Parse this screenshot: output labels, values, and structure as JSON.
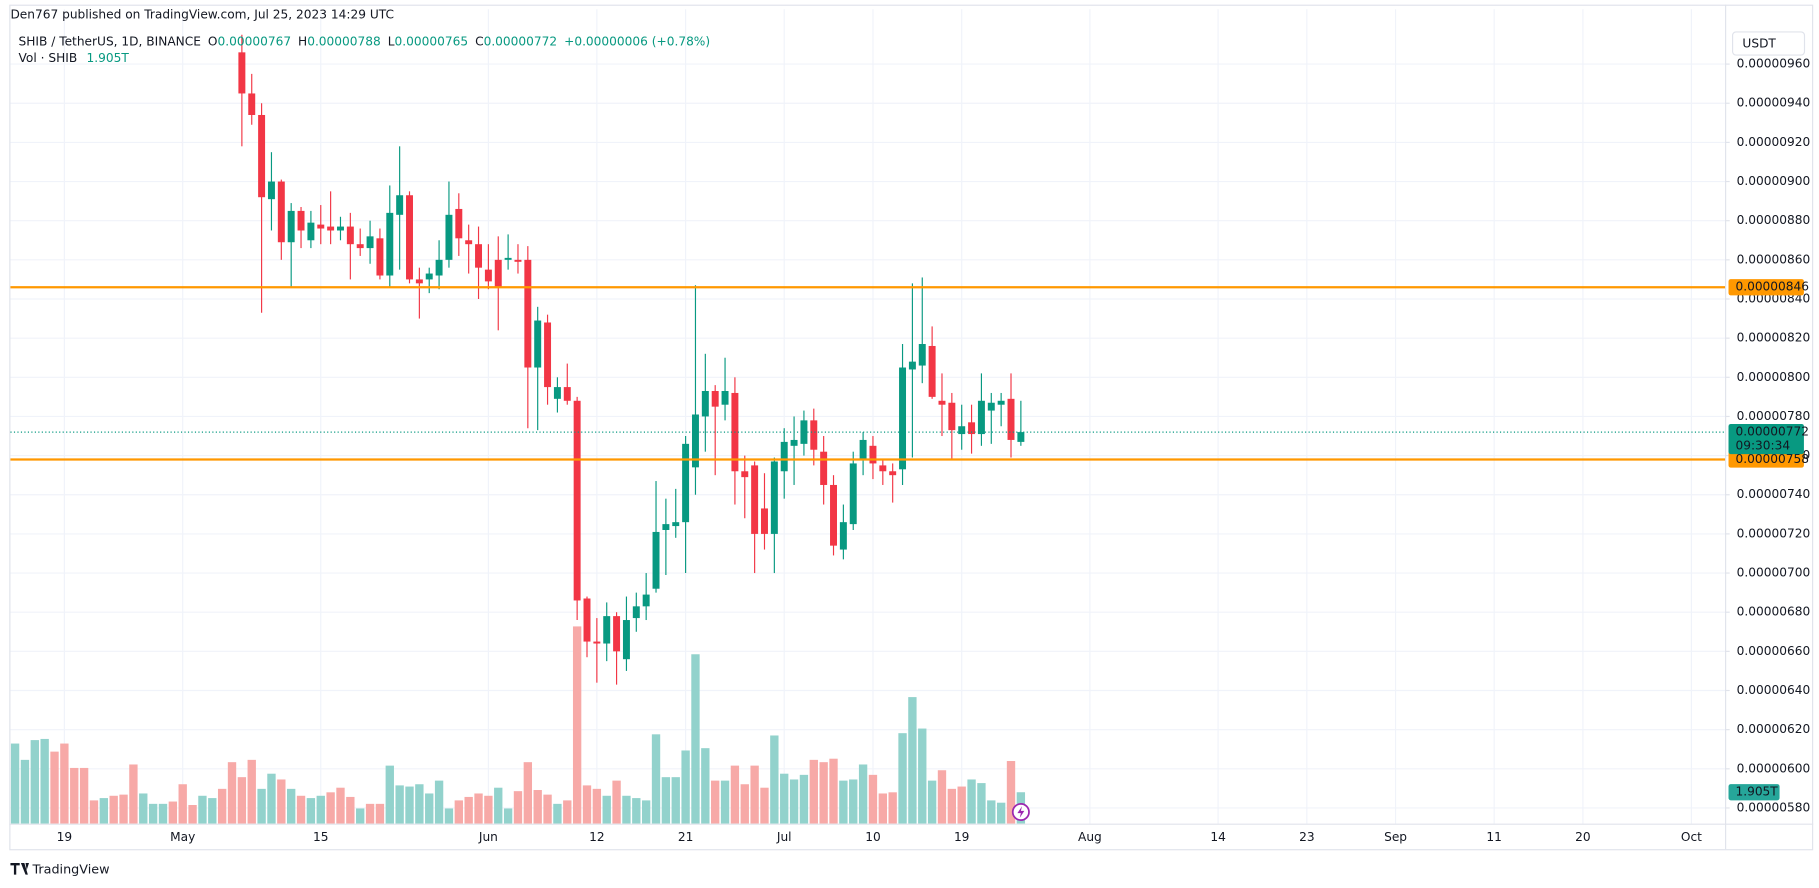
{
  "header": {
    "publisher": "Den767 published on TradingView.com, Jul 25, 2023 14:29 UTC",
    "currency_button": "USDT",
    "brand": "TradingView"
  },
  "legend": {
    "symbol": "SHIB / TetherUS, 1D, BINANCE",
    "open_label": "O",
    "open": "0.00000767",
    "high_label": "H",
    "high": "0.00000788",
    "low_label": "L",
    "low": "0.00000765",
    "close_label": "C",
    "close": "0.00000772",
    "change": "+0.00000006 (+0.78%)",
    "volume_name": "Vol · SHIB",
    "volume": "1.905T"
  },
  "chart_data": {
    "type": "candlestick",
    "up_color": "#089981",
    "down_color": "#f23645",
    "grid": true,
    "ylim": [
      5.72e-06,
      9.88e-06
    ],
    "yticks": [
      {
        "value": 5.8e-06,
        "label": "0.00000580"
      },
      {
        "value": 6e-06,
        "label": "0.00000600"
      },
      {
        "value": 6.2e-06,
        "label": "0.00000620"
      },
      {
        "value": 6.4e-06,
        "label": "0.00000640"
      },
      {
        "value": 6.6e-06,
        "label": "0.00000660"
      },
      {
        "value": 6.8e-06,
        "label": "0.00000680"
      },
      {
        "value": 7e-06,
        "label": "0.00000700"
      },
      {
        "value": 7.2e-06,
        "label": "0.00000720"
      },
      {
        "value": 7.4e-06,
        "label": "0.00000740"
      },
      {
        "value": 7.6e-06,
        "label": "0.00000760"
      },
      {
        "value": 7.8e-06,
        "label": "0.00000780"
      },
      {
        "value": 8e-06,
        "label": "0.00000800"
      },
      {
        "value": 8.2e-06,
        "label": "0.00000820"
      },
      {
        "value": 8.4e-06,
        "label": "0.00000840"
      },
      {
        "value": 8.6e-06,
        "label": "0.00000860"
      },
      {
        "value": 8.8e-06,
        "label": "0.00000880"
      },
      {
        "value": 9e-06,
        "label": "0.00000900"
      },
      {
        "value": 9.2e-06,
        "label": "0.00000920"
      },
      {
        "value": 9.4e-06,
        "label": "0.00000940"
      },
      {
        "value": 9.6e-06,
        "label": "0.00000960"
      }
    ],
    "categories": [
      null,
      null,
      null,
      null,
      null,
      "19",
      null,
      null,
      null,
      null,
      null,
      null,
      null,
      null,
      null,
      null,
      null,
      "May",
      null,
      null,
      null,
      null,
      null,
      null,
      null,
      null,
      null,
      null,
      null,
      null,
      null,
      "15",
      null,
      null,
      null,
      null,
      null,
      null,
      null,
      null,
      null,
      null,
      null,
      null,
      null,
      null,
      null,
      null,
      "Jun",
      null,
      null,
      null,
      null,
      null,
      null,
      null,
      null,
      null,
      null,
      "12",
      null,
      null,
      null,
      null,
      null,
      null,
      null,
      null,
      "21",
      null,
      null,
      null,
      null,
      null,
      null,
      null,
      null,
      null,
      "Jul",
      null,
      null,
      null,
      null,
      null,
      null,
      null,
      null,
      "10",
      null,
      null,
      null,
      null,
      null,
      null,
      null,
      null,
      "19",
      null,
      null,
      null,
      null,
      null,
      null,
      null,
      null,
      null,
      null,
      null,
      null,
      "Aug",
      null,
      null,
      null,
      null,
      null,
      null,
      null,
      null,
      null,
      null,
      null,
      null,
      "14",
      null,
      null,
      null,
      null,
      null,
      null,
      null,
      null,
      "23",
      null,
      null,
      null,
      null,
      null,
      null,
      null,
      null,
      "Sep",
      null,
      null,
      null,
      null,
      null,
      null,
      null,
      null,
      null,
      "11",
      null,
      null,
      null,
      null,
      null,
      null,
      null,
      null,
      "20",
      null,
      null,
      null,
      null,
      null,
      null,
      null,
      null,
      null,
      null,
      "Oct",
      null,
      null,
      null
    ],
    "open": [
      null,
      null,
      null,
      null,
      null,
      null,
      null,
      null,
      null,
      null,
      null,
      null,
      null,
      null,
      null,
      null,
      null,
      null,
      null,
      null,
      null,
      null,
      null,
      9.66e-06,
      9.45e-06,
      9.34e-06,
      8.91e-06,
      9e-06,
      8.69e-06,
      8.85e-06,
      8.7e-06,
      8.78e-06,
      8.77e-06,
      8.75e-06,
      8.77e-06,
      8.68e-06,
      8.66e-06,
      8.71e-06,
      8.52e-06,
      8.83e-06,
      8.93e-06,
      8.5e-06,
      8.5e-06,
      8.52e-06,
      8.6e-06,
      8.86e-06,
      8.7e-06,
      8.68e-06,
      8.55e-06,
      8.6e-06,
      8.6e-06,
      8.6e-06,
      8.6e-06,
      8.05e-06,
      8.28e-06,
      7.89e-06,
      7.95e-06,
      7.88e-06,
      6.87e-06,
      6.65e-06,
      6.64e-06,
      6.78e-06,
      6.56e-06,
      6.77e-06,
      6.83e-06,
      6.92e-06,
      7.22e-06,
      7.24e-06,
      7.26e-06,
      7.54e-06,
      7.8e-06,
      7.93e-06,
      7.86e-06,
      7.92e-06,
      7.52e-06,
      7.55e-06,
      7.33e-06,
      7.2e-06,
      7.52e-06,
      7.65e-06,
      7.66e-06,
      7.78e-06,
      7.62e-06,
      7.45e-06,
      7.12e-06,
      7.25e-06,
      7.58e-06,
      7.65e-06,
      7.55e-06,
      7.52e-06,
      7.53e-06,
      8.04e-06,
      8.06e-06,
      8.16e-06,
      7.88e-06,
      7.87e-06,
      7.71e-06,
      7.77e-06,
      7.71e-06,
      7.83e-06,
      7.86e-06,
      7.89e-06,
      7.67e-06,
      null,
      null,
      null,
      null,
      null,
      null,
      null,
      null,
      null,
      null,
      null,
      null,
      null,
      null,
      null,
      null,
      null,
      null,
      null,
      null,
      null,
      null,
      null,
      null,
      null,
      null,
      null,
      null,
      null,
      null,
      null,
      null,
      null,
      null,
      null,
      null,
      null,
      null,
      null,
      null,
      null,
      null,
      null,
      null,
      null,
      null,
      null,
      null,
      null,
      null,
      null,
      null,
      null,
      null,
      null,
      null,
      null,
      null,
      null,
      null,
      null,
      null,
      null,
      null,
      null,
      null,
      null,
      null,
      null,
      null,
      null
    ],
    "high": [
      null,
      null,
      null,
      null,
      null,
      null,
      null,
      null,
      null,
      null,
      null,
      null,
      null,
      null,
      null,
      null,
      null,
      null,
      null,
      null,
      null,
      null,
      null,
      9.75e-06,
      9.55e-06,
      9.4e-06,
      9.15e-06,
      9.01e-06,
      8.89e-06,
      8.87e-06,
      8.85e-06,
      8.88e-06,
      8.95e-06,
      8.82e-06,
      8.84e-06,
      8.76e-06,
      8.8e-06,
      8.76e-06,
      8.98e-06,
      9.18e-06,
      8.95e-06,
      8.56e-06,
      8.56e-06,
      8.7e-06,
      9e-06,
      8.94e-06,
      8.78e-06,
      8.77e-06,
      8.68e-06,
      8.72e-06,
      8.73e-06,
      8.68e-06,
      8.67e-06,
      8.36e-06,
      8.32e-06,
      8e-06,
      8.07e-06,
      7.9e-06,
      6.88e-06,
      6.77e-06,
      6.85e-06,
      6.8e-06,
      6.88e-06,
      6.9e-06,
      7e-06,
      7.47e-06,
      7.38e-06,
      7.43e-06,
      7.7e-06,
      8.47e-06,
      8.12e-06,
      7.96e-06,
      8.1e-06,
      8e-06,
      7.6e-06,
      7.57e-06,
      7.51e-06,
      7.59e-06,
      7.74e-06,
      7.8e-06,
      7.83e-06,
      7.84e-06,
      7.7e-06,
      7.5e-06,
      7.35e-06,
      7.62e-06,
      7.72e-06,
      7.7e-06,
      7.58e-06,
      7.56e-06,
      8.17e-06,
      8.48e-06,
      8.51e-06,
      8.26e-06,
      8.02e-06,
      7.92e-06,
      7.86e-06,
      7.86e-06,
      8.02e-06,
      7.92e-06,
      7.92e-06,
      8.02e-06,
      7.88e-06,
      null,
      null,
      null,
      null,
      null,
      null,
      null,
      null,
      null,
      null,
      null,
      null,
      null,
      null,
      null,
      null,
      null,
      null,
      null,
      null,
      null,
      null,
      null,
      null,
      null,
      null,
      null,
      null,
      null,
      null,
      null,
      null,
      null,
      null,
      null,
      null,
      null,
      null,
      null,
      null,
      null,
      null,
      null,
      null,
      null,
      null,
      null,
      null,
      null,
      null,
      null,
      null,
      null,
      null,
      null,
      null,
      null,
      null,
      null,
      null,
      null,
      null,
      null,
      null,
      null,
      null,
      null,
      null,
      null,
      null,
      null
    ],
    "low": [
      null,
      null,
      null,
      null,
      null,
      null,
      null,
      null,
      null,
      null,
      null,
      null,
      null,
      null,
      null,
      null,
      null,
      null,
      null,
      null,
      null,
      null,
      null,
      9.18e-06,
      9.29e-06,
      8.33e-06,
      8.75e-06,
      8.6e-06,
      8.46e-06,
      8.66e-06,
      8.66e-06,
      8.68e-06,
      8.68e-06,
      8.7e-06,
      8.5e-06,
      8.62e-06,
      8.58e-06,
      8.5e-06,
      8.46e-06,
      8.55e-06,
      8.48e-06,
      8.3e-06,
      8.43e-06,
      8.45e-06,
      8.56e-06,
      8.62e-06,
      8.53e-06,
      8.4e-06,
      8.45e-06,
      8.24e-06,
      8.55e-06,
      8.53e-06,
      7.74e-06,
      7.73e-06,
      7.86e-06,
      7.82e-06,
      7.86e-06,
      6.76e-06,
      6.57e-06,
      6.44e-06,
      6.55e-06,
      6.43e-06,
      6.5e-06,
      6.7e-06,
      6.76e-06,
      6.9e-06,
      6.99e-06,
      7.18e-06,
      7e-06,
      7.4e-06,
      7.62e-06,
      7.5e-06,
      7.78e-06,
      7.35e-06,
      7.28e-06,
      7e-06,
      7.12e-06,
      7e-06,
      7.38e-06,
      7.45e-06,
      7.6e-06,
      7.55e-06,
      7.35e-06,
      7.09e-06,
      7.07e-06,
      7.22e-06,
      7.5e-06,
      7.48e-06,
      7.45e-06,
      7.36e-06,
      7.45e-06,
      7.59e-06,
      7.97e-06,
      7.89e-06,
      7.7e-06,
      7.58e-06,
      7.63e-06,
      7.61e-06,
      7.65e-06,
      7.66e-06,
      7.75e-06,
      7.59e-06,
      7.65e-06,
      null,
      null,
      null,
      null,
      null,
      null,
      null,
      null,
      null,
      null,
      null,
      null,
      null,
      null,
      null,
      null,
      null,
      null,
      null,
      null,
      null,
      null,
      null,
      null,
      null,
      null,
      null,
      null,
      null,
      null,
      null,
      null,
      null,
      null,
      null,
      null,
      null,
      null,
      null,
      null,
      null,
      null,
      null,
      null,
      null,
      null,
      null,
      null,
      null,
      null,
      null,
      null,
      null,
      null,
      null,
      null,
      null,
      null,
      null,
      null,
      null,
      null,
      null,
      null,
      null,
      null,
      null,
      null,
      null,
      null,
      null
    ],
    "close": [
      null,
      null,
      null,
      null,
      null,
      null,
      null,
      null,
      null,
      null,
      null,
      null,
      null,
      null,
      null,
      null,
      null,
      null,
      null,
      null,
      null,
      null,
      null,
      9.45e-06,
      9.34e-06,
      8.92e-06,
      9e-06,
      8.69e-06,
      8.85e-06,
      8.75e-06,
      8.79e-06,
      8.76e-06,
      8.75e-06,
      8.77e-06,
      8.68e-06,
      8.66e-06,
      8.72e-06,
      8.52e-06,
      8.84e-06,
      8.93e-06,
      8.5e-06,
      8.48e-06,
      8.53e-06,
      8.6e-06,
      8.83e-06,
      8.71e-06,
      8.68e-06,
      8.56e-06,
      8.49e-06,
      8.46e-06,
      8.61e-06,
      8.59e-06,
      8.05e-06,
      8.29e-06,
      7.95e-06,
      7.95e-06,
      7.88e-06,
      6.86e-06,
      6.65e-06,
      6.64e-06,
      6.78e-06,
      6.6e-06,
      6.76e-06,
      6.83e-06,
      6.89e-06,
      7.21e-06,
      7.25e-06,
      7.26e-06,
      7.66e-06,
      7.81e-06,
      7.93e-06,
      7.85e-06,
      7.93e-06,
      7.52e-06,
      7.49e-06,
      7.2e-06,
      7.2e-06,
      7.57e-06,
      7.67e-06,
      7.68e-06,
      7.78e-06,
      7.63e-06,
      7.45e-06,
      7.14e-06,
      7.26e-06,
      7.56e-06,
      7.68e-06,
      7.56e-06,
      7.52e-06,
      7.5e-06,
      8.05e-06,
      8.08e-06,
      8.17e-06,
      7.9e-06,
      7.86e-06,
      7.73e-06,
      7.75e-06,
      7.71e-06,
      7.88e-06,
      7.87e-06,
      7.88e-06,
      7.68e-06,
      7.72e-06,
      null,
      null,
      null,
      null,
      null,
      null,
      null,
      null,
      null,
      null,
      null,
      null,
      null,
      null,
      null,
      null,
      null,
      null,
      null,
      null,
      null,
      null,
      null,
      null,
      null,
      null,
      null,
      null,
      null,
      null,
      null,
      null,
      null,
      null,
      null,
      null,
      null,
      null,
      null,
      null,
      null,
      null,
      null,
      null,
      null,
      null,
      null,
      null,
      null,
      null,
      null,
      null,
      null,
      null,
      null,
      null,
      null,
      null,
      null,
      null,
      null,
      null,
      null,
      null,
      null,
      null,
      null,
      null,
      null,
      null,
      null
    ],
    "volume": {
      "name": "Vol · SHIB",
      "label": "1.905T",
      "label_color": "#26a69a",
      "values": [
        4.86,
        3.87,
        5.07,
        5.14,
        4.37,
        4.86,
        3.38,
        3.38,
        1.41,
        1.55,
        1.69,
        1.76,
        3.59,
        1.83,
        1.2,
        1.2,
        1.34,
        2.39,
        1.13,
        1.69,
        1.55,
        2.11,
        3.73,
        2.82,
        3.87,
        2.11,
        3.03,
        2.68,
        2.11,
        1.69,
        1.55,
        1.69,
        1.9,
        2.18,
        1.62,
        0.92,
        1.2,
        1.2,
        3.52,
        2.32,
        2.25,
        2.39,
        1.83,
        2.61,
        0.92,
        1.41,
        1.62,
        1.83,
        1.69,
        2.18,
        0.92,
        1.97,
        3.73,
        2.04,
        1.76,
        1.2,
        1.41,
        11.97,
        2.32,
        2.11,
        1.69,
        2.61,
        1.69,
        1.55,
        1.41,
        5.42,
        2.82,
        2.82,
        4.44,
        10.28,
        4.58,
        2.61,
        2.61,
        3.52,
        2.39,
        3.52,
        2.18,
        5.35,
        3.03,
        2.68,
        2.96,
        3.87,
        3.73,
        3.94,
        2.61,
        2.68,
        3.59,
        2.96,
        1.83,
        1.9,
        5.49,
        7.68,
        5.77,
        2.61,
        3.24,
        2.11,
        2.25,
        2.68,
        2.46,
        1.41,
        1.27,
        3.8,
        1.905,
        null,
        null,
        null,
        null,
        null,
        null,
        null,
        null,
        null,
        null,
        null,
        null,
        null,
        null,
        null,
        null,
        null,
        null,
        null,
        null,
        null,
        null,
        null,
        null,
        null,
        null,
        null,
        null,
        null,
        null,
        null,
        null,
        null,
        null,
        null,
        null,
        null,
        null,
        null,
        null,
        null,
        null,
        null,
        null,
        null,
        null,
        null,
        null,
        null,
        null,
        null,
        null,
        null,
        null,
        null,
        null,
        null,
        null,
        null,
        null,
        null,
        null,
        null,
        null,
        null,
        null,
        null,
        null,
        null,
        null,
        null
      ],
      "colors": [
        "#92d2cc",
        "#92d2cc",
        "#92d2cc",
        "#92d2cc",
        "#f7a9a7",
        "#f7a9a7",
        "#f7a9a7",
        "#f7a9a7",
        "#f7a9a7",
        "#92d2cc",
        "#f7a9a7",
        "#f7a9a7",
        "#f7a9a7",
        "#92d2cc",
        "#92d2cc",
        "#92d2cc",
        "#f7a9a7",
        "#f7a9a7",
        "#f7a9a7",
        "#92d2cc",
        "#92d2cc",
        "#f7a9a7",
        "#f7a9a7",
        "#f7a9a7",
        "#f7a9a7",
        "#92d2cc",
        "#92d2cc",
        "#f7a9a7",
        "#92d2cc",
        "#f7a9a7",
        "#92d2cc",
        "#92d2cc",
        "#f7a9a7",
        "#f7a9a7",
        "#f7a9a7",
        "#92d2cc",
        "#f7a9a7",
        "#f7a9a7",
        "#92d2cc",
        "#92d2cc",
        "#92d2cc",
        "#92d2cc",
        "#92d2cc",
        "#92d2cc",
        "#92d2cc",
        "#f7a9a7",
        "#f7a9a7",
        "#f7a9a7",
        "#f7a9a7",
        "#92d2cc",
        "#92d2cc",
        "#f7a9a7",
        "#f7a9a7",
        "#f7a9a7",
        "#f7a9a7",
        "#92d2cc",
        "#f7a9a7",
        "#f7a9a7",
        "#f7a9a7",
        "#f7a9a7",
        "#92d2cc",
        "#f7a9a7",
        "#92d2cc",
        "#92d2cc",
        "#92d2cc",
        "#92d2cc",
        "#92d2cc",
        "#92d2cc",
        "#92d2cc",
        "#92d2cc",
        "#92d2cc",
        "#f7a9a7",
        "#92d2cc",
        "#f7a9a7",
        "#f7a9a7",
        "#f7a9a7",
        "#f7a9a7",
        "#92d2cc",
        "#92d2cc",
        "#92d2cc",
        "#92d2cc",
        "#f7a9a7",
        "#f7a9a7",
        "#f7a9a7",
        "#92d2cc",
        "#92d2cc",
        "#92d2cc",
        "#f7a9a7",
        "#f7a9a7",
        "#f7a9a7",
        "#92d2cc",
        "#92d2cc",
        "#92d2cc",
        "#92d2cc",
        "#f7a9a7",
        "#f7a9a7",
        "#f7a9a7",
        "#92d2cc",
        "#92d2cc",
        "#92d2cc",
        "#92d2cc",
        "#f7a9a7",
        "#92d2cc",
        null,
        null,
        null,
        null,
        null,
        null,
        null,
        null,
        null,
        null,
        null,
        null,
        null,
        null,
        null,
        null,
        null,
        null,
        null,
        null,
        null,
        null,
        null,
        null,
        null,
        null,
        null,
        null,
        null,
        null,
        null,
        null,
        null,
        null,
        null,
        null,
        null,
        null,
        null,
        null,
        null,
        null,
        null,
        null,
        null,
        null,
        null,
        null,
        null,
        null,
        null,
        null,
        null,
        null,
        null,
        null,
        null,
        null,
        null,
        null,
        null,
        null,
        null,
        null,
        null,
        null,
        null,
        null,
        null,
        null,
        null
      ]
    },
    "levels": [
      {
        "value": 8.46e-06,
        "label": "0.00000846",
        "color": "#ff9800"
      },
      {
        "value": 7.58e-06,
        "label": "0.00000758",
        "color": "#ff9800"
      }
    ],
    "last_price": {
      "value": 7.72e-06,
      "label": "0.00000772",
      "countdown": "09:30:34",
      "color": "#089981"
    }
  }
}
